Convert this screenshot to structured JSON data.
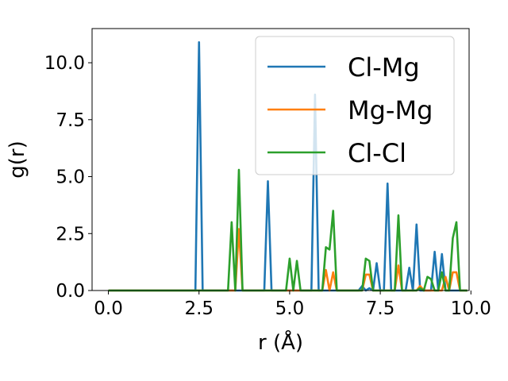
{
  "chart_data": {
    "type": "line",
    "xlabel": "r (Å)",
    "ylabel": "g(r)",
    "xlim": [
      -0.45,
      9.95
    ],
    "ylim": [
      0,
      11.5
    ],
    "xticks": [
      0.0,
      2.5,
      5.0,
      7.5,
      10.0
    ],
    "xtick_labels": [
      "0.0",
      "2.5",
      "5.0",
      "7.5",
      "10.0"
    ],
    "yticks": [
      0.0,
      2.5,
      5.0,
      7.5,
      10.0
    ],
    "ytick_labels": [
      "0.0",
      "2.5",
      "5.0",
      "7.5",
      "10.0"
    ],
    "grid": false,
    "legend_position": "top-right",
    "series": [
      {
        "name": "Cl-Mg",
        "color": "#1f77b4",
        "x": [
          0.0,
          2.4,
          2.5,
          2.6,
          4.3,
          4.4,
          4.5,
          5.6,
          5.7,
          5.8,
          6.9,
          7.0,
          7.1,
          7.2,
          7.3,
          7.4,
          7.5,
          7.6,
          7.7,
          7.8,
          8.2,
          8.3,
          8.4,
          8.5,
          8.6,
          8.8,
          8.9,
          9.0,
          9.1,
          9.2,
          9.3,
          9.9
        ],
        "y": [
          0.0,
          0.0,
          10.9,
          0.0,
          0.0,
          4.8,
          0.0,
          0.0,
          8.6,
          0.0,
          0.0,
          0.2,
          0.0,
          0.1,
          0.0,
          1.2,
          0.0,
          0.0,
          4.7,
          0.0,
          0.0,
          1.0,
          0.0,
          2.9,
          0.0,
          0.0,
          0.0,
          1.7,
          0.0,
          1.6,
          0.0,
          0.0
        ]
      },
      {
        "name": "Mg-Mg",
        "color": "#ff7f0e",
        "x": [
          0.0,
          3.5,
          3.6,
          3.7,
          5.9,
          6.0,
          6.1,
          6.2,
          6.3,
          7.0,
          7.1,
          7.2,
          7.3,
          7.9,
          8.0,
          8.1,
          8.5,
          8.6,
          8.7,
          9.2,
          9.3,
          9.4,
          9.5,
          9.6,
          9.7,
          9.9
        ],
        "y": [
          0.0,
          0.0,
          2.7,
          0.0,
          0.0,
          0.9,
          0.0,
          0.8,
          0.0,
          0.0,
          0.7,
          0.7,
          0.0,
          0.0,
          1.1,
          0.0,
          0.0,
          0.2,
          0.0,
          0.0,
          0.6,
          0.0,
          0.8,
          0.8,
          0.0,
          0.0
        ]
      },
      {
        "name": "Cl-Cl",
        "color": "#2ca02c",
        "x": [
          0.0,
          3.3,
          3.4,
          3.5,
          3.6,
          3.7,
          4.8,
          4.9,
          5.0,
          5.1,
          5.2,
          5.3,
          5.9,
          6.0,
          6.1,
          6.2,
          6.3,
          6.4,
          7.0,
          7.1,
          7.2,
          7.3,
          7.4,
          7.9,
          8.0,
          8.1,
          8.4,
          8.5,
          8.6,
          8.7,
          8.8,
          8.9,
          9.0,
          9.1,
          9.2,
          9.3,
          9.4,
          9.5,
          9.6,
          9.7,
          9.9
        ],
        "y": [
          0.0,
          0.0,
          3.0,
          0.0,
          5.3,
          0.0,
          0.0,
          0.0,
          1.4,
          0.0,
          1.3,
          0.0,
          0.0,
          1.9,
          1.8,
          3.5,
          0.0,
          0.0,
          0.0,
          1.4,
          1.3,
          0.0,
          0.0,
          0.0,
          3.3,
          0.0,
          0.0,
          0.0,
          0.1,
          0.0,
          0.6,
          0.5,
          0.0,
          0.0,
          0.8,
          0.0,
          0.0,
          2.3,
          3.0,
          0.0,
          0.0
        ]
      }
    ]
  }
}
